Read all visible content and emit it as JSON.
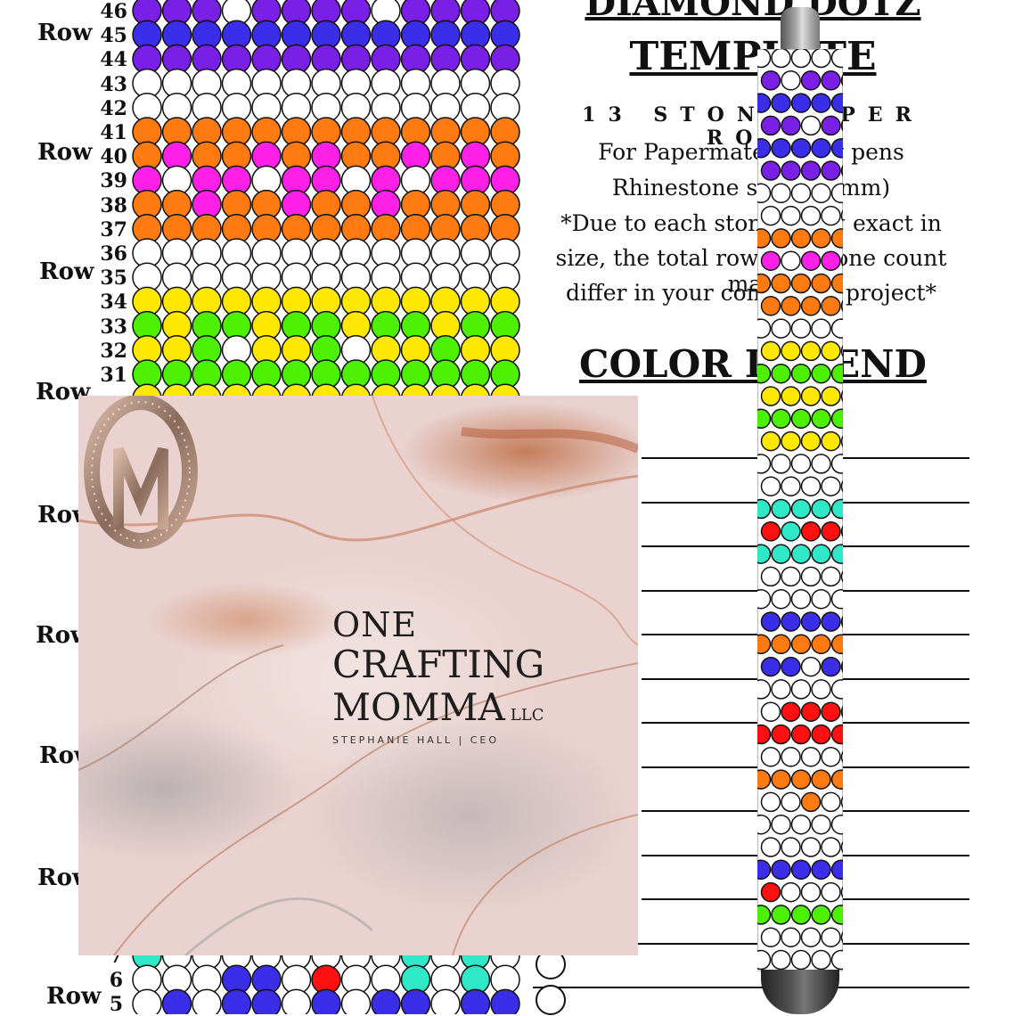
{
  "template": {
    "title_top": "DIAMOND DOTZ",
    "title_template": "TEMPLATE",
    "stones_per_row": "13 STONES PER ROW",
    "info_lines": [
      "For Papermate InkJoy pens",
      "Rhinestone size 2.8 mm)",
      "*Due to each stone being exact in",
      "size, the total row and stone count may",
      "differ in your completed project*"
    ],
    "color_legend": "COLOR LEGEND"
  },
  "row_labels": {
    "word": "Row",
    "numbers": [
      "46",
      "45",
      "44",
      "43",
      "42",
      "41",
      "40",
      "39",
      "38",
      "37",
      "36",
      "35",
      "34",
      "33",
      "32",
      "31"
    ],
    "bottom_numbers": [
      "7",
      "6",
      "5"
    ],
    "visible_words": [
      "Row",
      "Row",
      "Row",
      "Row",
      "Row",
      "Row",
      "Row",
      "Row",
      "Row",
      "Row"
    ]
  },
  "brand": {
    "one": "ONE",
    "crafting": "CRAFTING",
    "momma": "MOMMA",
    "llc": "LLC",
    "ceo": "STEPHANIE HALL | CEO"
  },
  "colors": {
    "purple": "#7a1fe6",
    "blue": "#3a2ee8",
    "orange": "#ff7a10",
    "magenta": "#ff20e8",
    "yellow": "#ffe800",
    "green": "#4cf000",
    "teal": "#2ee8c8",
    "red": "#ff1010",
    "white": "#ffffff"
  },
  "icons": {
    "logo": "om-monogram-logo",
    "pen": "pen-mockup"
  }
}
